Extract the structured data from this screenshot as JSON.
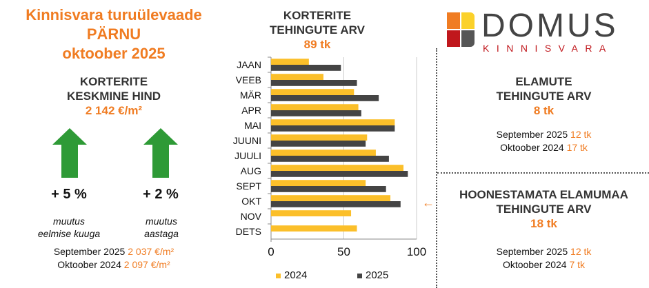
{
  "left": {
    "title_line1": "Kinnisvara turuülevaade",
    "title_line2": "PÄRNU",
    "title_line3": "oktoober 2025",
    "heading_line1": "KORTERITE",
    "heading_line2": "KESKMINE HIND",
    "price": "2 142 €/m²",
    "change_month": {
      "value": "+ 5 %",
      "label1": "muutus",
      "label2": "eelmise kuuga",
      "direction": "up"
    },
    "change_year": {
      "value": "+ 2 %",
      "label1": "muutus",
      "label2": "aastaga",
      "direction": "up"
    },
    "compare": [
      {
        "label": "September 2025",
        "value": "2 037 €/m²"
      },
      {
        "label": "Oktoober 2024",
        "value": "2 097 €/m²"
      }
    ]
  },
  "chart_data": {
    "type": "bar",
    "orientation": "horizontal",
    "title": "KORTERITE TEHINGUTE ARV",
    "subtitle": "89 tk",
    "categories": [
      "JAAN",
      "VEEB",
      "MÄR",
      "APR",
      "MAI",
      "JUUNI",
      "JUULI",
      "AUG",
      "SEPT",
      "OKT",
      "NOV",
      "DETS"
    ],
    "series": [
      {
        "name": "2024",
        "color": "#fbbf2a",
        "values": [
          26,
          36,
          57,
          60,
          85,
          66,
          72,
          91,
          65,
          82,
          55,
          59
        ]
      },
      {
        "name": "2025",
        "color": "#444444",
        "values": [
          48,
          59,
          74,
          62,
          85,
          65,
          81,
          94,
          79,
          89,
          null,
          null
        ]
      }
    ],
    "xlim": [
      0,
      100
    ],
    "xticks": [
      0,
      50,
      100
    ],
    "grid": true,
    "legend": "bottom",
    "highlight": "OKT",
    "highlight_color": "#f07c22"
  },
  "logo": {
    "name": "DOMUS",
    "sub": "KINNISVARA"
  },
  "houses": {
    "line1": "ELAMUTE",
    "line2": "TEHINGUTE ARV",
    "value": "8 tk",
    "compare": [
      {
        "label": "September 2025",
        "value": "12 tk"
      },
      {
        "label": "Oktoober 2024",
        "value": "17 tk"
      }
    ]
  },
  "land": {
    "line1": "HOONESTAMATA ELAMUMAA",
    "line2": "TEHINGUTE ARV",
    "value": "18 tk",
    "compare": [
      {
        "label": "September 2025",
        "value": "12 tk"
      },
      {
        "label": "Oktoober 2024",
        "value": "7 tk"
      }
    ]
  }
}
